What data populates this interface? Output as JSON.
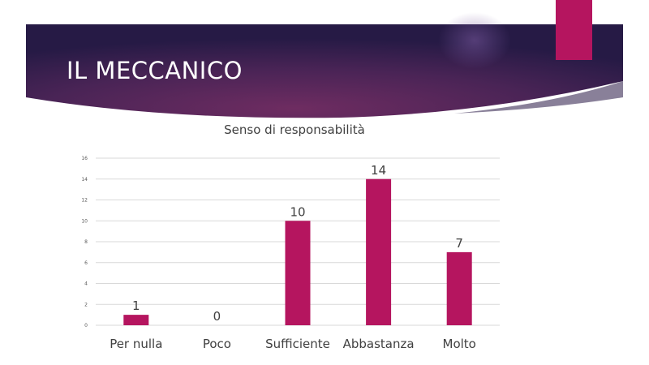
{
  "slide": {
    "title": "IL MECCANICO"
  },
  "colors": {
    "banner_dark": "#2b1b4a",
    "banner_mid": "#6a2b5e",
    "accent": "#b5155f",
    "bar": "#b5155f",
    "grid": "#d9d9d9",
    "axis_text": "#595959"
  },
  "chart_data": {
    "type": "bar",
    "title": "Senso di responsabilità",
    "categories": [
      "Per nulla",
      "Poco",
      "Sufficiente",
      "Abbastanza",
      "Molto"
    ],
    "values": [
      1,
      0,
      10,
      14,
      7
    ],
    "data_labels": [
      "1",
      "0",
      "10",
      "14",
      "7"
    ],
    "yticks": [
      "0",
      "2",
      "4",
      "6",
      "8",
      "10",
      "12",
      "14",
      "16"
    ],
    "ylim": [
      0,
      16
    ],
    "grid": true,
    "legend": "none",
    "xlabel": "",
    "ylabel": ""
  }
}
